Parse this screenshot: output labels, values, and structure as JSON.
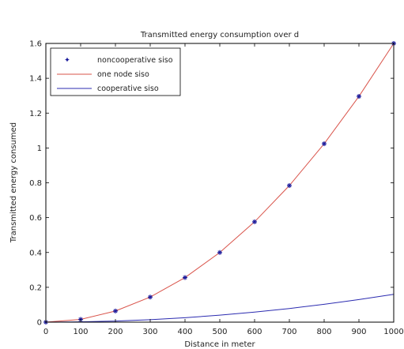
{
  "chart_data": {
    "type": "line",
    "title": "Transmitted energy consumption over d",
    "xlabel": "Distance in meter",
    "ylabel": "Transmitted energy consumed",
    "xlim": [
      0,
      1000
    ],
    "ylim": [
      0,
      1.6
    ],
    "xticks": [
      0,
      100,
      200,
      300,
      400,
      500,
      600,
      700,
      800,
      900,
      1000
    ],
    "yticks": [
      0,
      0.2,
      0.4,
      0.6,
      0.8,
      1,
      1.2,
      1.4,
      1.6
    ],
    "grid": false,
    "legend_position": "top-left",
    "x": [
      0,
      100,
      200,
      300,
      400,
      500,
      600,
      700,
      800,
      900,
      1000
    ],
    "series": [
      {
        "name": "noncooperative siso",
        "style": "star-markers",
        "color": "#1a1a9c",
        "values": [
          0,
          0.016,
          0.064,
          0.144,
          0.256,
          0.4,
          0.576,
          0.784,
          1.024,
          1.296,
          1.6
        ]
      },
      {
        "name": "one node siso",
        "style": "line",
        "color": "#d9534a",
        "values": [
          0,
          0.016,
          0.064,
          0.144,
          0.256,
          0.4,
          0.576,
          0.784,
          1.024,
          1.296,
          1.6
        ]
      },
      {
        "name": "cooperative siso",
        "style": "line",
        "color": "#2b2bb0",
        "values": [
          0,
          0.0016,
          0.0064,
          0.0144,
          0.0256,
          0.04,
          0.0576,
          0.0784,
          0.1024,
          0.1296,
          0.16
        ]
      }
    ]
  }
}
